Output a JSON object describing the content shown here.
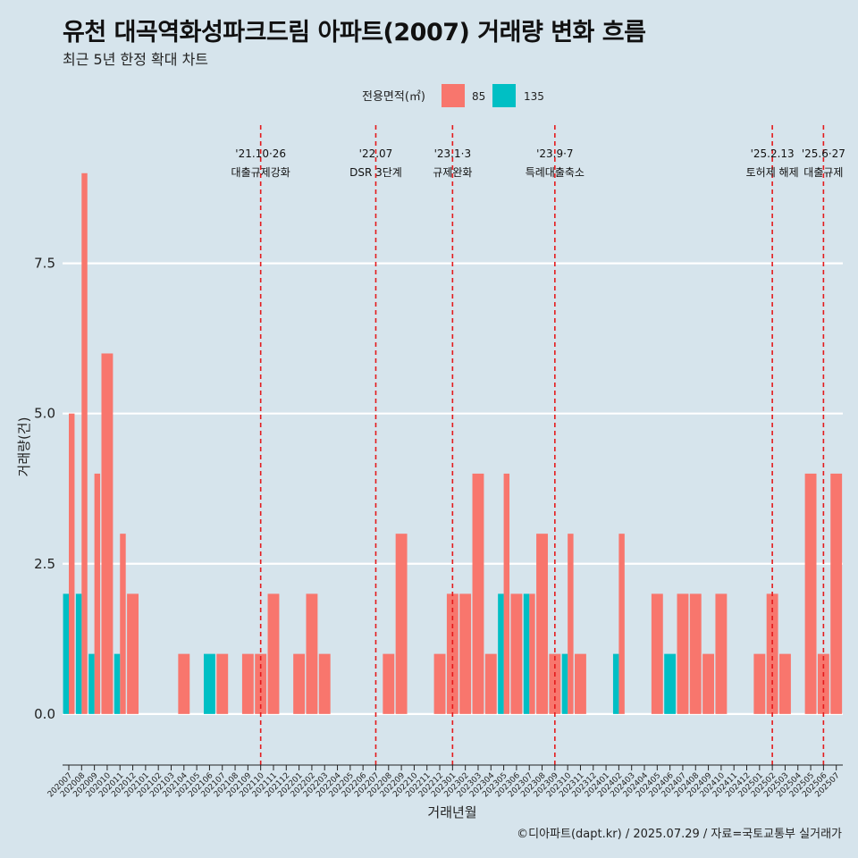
{
  "header": {
    "title": "유천 대곡역화성파크드림 아파트(2007) 거래량 변화 흐름",
    "subtitle": "최근 5년 한정 확대 차트"
  },
  "caption": "©디아파트(dapt.kr) / 2025.07.29 / 자료=국토교통부 실거래가",
  "legend": {
    "title": "전용면적(㎡)",
    "items": [
      {
        "label": "85",
        "color": "#f8766d"
      },
      {
        "label": "135",
        "color": "#00bfc4"
      }
    ]
  },
  "chart_data": {
    "type": "bar",
    "title": "유천 대곡역화성파크드림 아파트(2007) 거래량 변화 흐름",
    "subtitle": "최근 5년 한정 확대 차트",
    "xlabel": "거래년월",
    "ylabel": "거래량(건)",
    "ylim": [
      -0.85,
      9.8
    ],
    "yticks": [
      0.0,
      2.5,
      5.0,
      7.5
    ],
    "ytick_labels": [
      "0.0",
      "2.5",
      "5.0",
      "7.5"
    ],
    "grid": "horizontal",
    "legend_position": "top",
    "categories": [
      "202007",
      "202008",
      "202009",
      "202010",
      "202011",
      "202012",
      "202101",
      "202102",
      "202103",
      "202104",
      "202105",
      "202106",
      "202107",
      "202108",
      "202109",
      "202110",
      "202111",
      "202112",
      "202201",
      "202202",
      "202203",
      "202204",
      "202205",
      "202206",
      "202207",
      "202208",
      "202209",
      "202210",
      "202211",
      "202212",
      "202301",
      "202302",
      "202303",
      "202304",
      "202305",
      "202306",
      "202307",
      "202308",
      "202309",
      "202310",
      "202311",
      "202312",
      "202401",
      "202402",
      "202403",
      "202404",
      "202405",
      "202406",
      "202407",
      "202408",
      "202409",
      "202410",
      "202411",
      "202412",
      "202501",
      "202502",
      "202503",
      "202504",
      "202505",
      "202506",
      "202507"
    ],
    "series": [
      {
        "name": "85",
        "color": "#f8766d",
        "values": [
          5,
          9,
          4,
          6,
          3,
          2,
          0,
          0,
          0,
          1,
          0,
          0,
          1,
          0,
          1,
          1,
          2,
          0,
          1,
          2,
          1,
          0,
          0,
          0,
          0,
          1,
          3,
          0,
          0,
          1,
          2,
          2,
          4,
          1,
          4,
          2,
          2,
          3,
          1,
          3,
          1,
          0,
          0,
          3,
          0,
          0,
          2,
          0,
          2,
          2,
          1,
          2,
          0,
          0,
          1,
          2,
          1,
          0,
          4,
          1,
          4
        ]
      },
      {
        "name": "135",
        "color": "#00bfc4",
        "values": [
          2,
          2,
          1,
          0,
          1,
          0,
          0,
          0,
          0,
          0,
          0,
          1,
          0,
          0,
          0,
          0,
          0,
          0,
          0,
          0,
          0,
          0,
          0,
          0,
          0,
          0,
          0,
          0,
          0,
          0,
          0,
          0,
          0,
          0,
          2,
          0,
          2,
          0,
          0,
          1,
          0,
          0,
          0,
          1,
          0,
          0,
          0,
          1,
          0,
          0,
          0,
          0,
          0,
          0,
          0,
          0,
          0,
          0,
          0,
          0,
          0
        ]
      }
    ],
    "events": [
      {
        "date": "'21.10·26",
        "label": "대출규제강화",
        "at": "202110"
      },
      {
        "date": "'22.07",
        "label": "DSR 3단계",
        "at": "202207"
      },
      {
        "date": "'23.1·3",
        "label": "규제완화",
        "at": "202301"
      },
      {
        "date": "'23.9·7",
        "label": "특례대출축소",
        "at": "202309"
      },
      {
        "date": "'25.2.13",
        "label": "토허제 해제",
        "at": "202502"
      },
      {
        "date": "'25.6·27",
        "label": "대출규제",
        "at": "202506"
      }
    ]
  }
}
